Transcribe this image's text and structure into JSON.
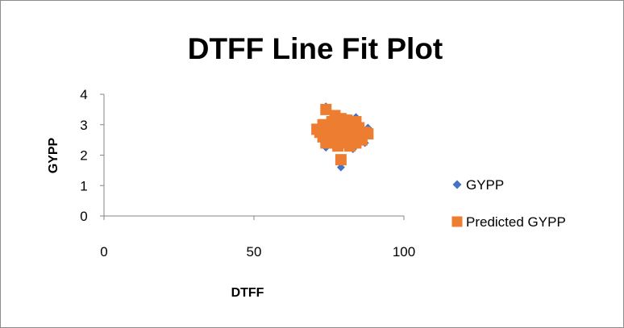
{
  "chart_data": {
    "type": "scatter",
    "title": "DTFF Line Fit  Plot",
    "xlabel": "DTFF",
    "ylabel": "GYPP",
    "xlim": [
      0,
      100
    ],
    "ylim": [
      0,
      4
    ],
    "xticks": [
      0,
      50,
      100
    ],
    "yticks": [
      0,
      1,
      2,
      3,
      4
    ],
    "grid": false,
    "legend_position": "right",
    "series": [
      {
        "name": "GYPP",
        "marker": "diamond",
        "color": "#4472C4",
        "points": [
          [
            74,
            3.6
          ],
          [
            79,
            1.6
          ],
          [
            84,
            3.25
          ],
          [
            88,
            2.9
          ],
          [
            74,
            2.25
          ],
          [
            83,
            2.2
          ],
          [
            72,
            2.7
          ],
          [
            76,
            3.1
          ],
          [
            78,
            2.5
          ],
          [
            80,
            2.9
          ],
          [
            82,
            2.4
          ],
          [
            85,
            2.8
          ],
          [
            77,
            2.3
          ],
          [
            81,
            3.0
          ],
          [
            75,
            2.9
          ],
          [
            86,
            2.5
          ],
          [
            79,
            2.7
          ],
          [
            73,
            2.5
          ],
          [
            87,
            2.4
          ],
          [
            76,
            2.6
          ]
        ]
      },
      {
        "name": "Predicted GYPP",
        "marker": "square",
        "color": "#ED7D31",
        "points": [
          [
            71,
            2.85
          ],
          [
            72,
            2.75
          ],
          [
            73,
            2.6
          ],
          [
            73,
            3.0
          ],
          [
            74,
            3.5
          ],
          [
            74,
            2.4
          ],
          [
            75,
            2.9
          ],
          [
            75,
            2.65
          ],
          [
            76,
            2.5
          ],
          [
            76,
            3.1
          ],
          [
            76,
            2.8
          ],
          [
            77,
            2.7
          ],
          [
            77,
            3.3
          ],
          [
            77,
            2.4
          ],
          [
            78,
            3.0
          ],
          [
            78,
            2.6
          ],
          [
            78,
            2.9
          ],
          [
            78,
            2.3
          ],
          [
            79,
            2.8
          ],
          [
            79,
            1.85
          ],
          [
            79,
            3.2
          ],
          [
            80,
            2.5
          ],
          [
            80,
            2.9
          ],
          [
            80,
            2.7
          ],
          [
            81,
            3.15
          ],
          [
            81,
            2.6
          ],
          [
            81,
            2.4
          ],
          [
            82,
            2.8
          ],
          [
            82,
            2.3
          ],
          [
            83,
            2.9
          ],
          [
            83,
            2.5
          ],
          [
            84,
            3.1
          ],
          [
            84,
            2.7
          ],
          [
            84,
            2.4
          ],
          [
            85,
            2.6
          ],
          [
            85,
            2.9
          ],
          [
            86,
            2.5
          ],
          [
            87,
            2.75
          ],
          [
            88,
            2.7
          ]
        ]
      }
    ]
  }
}
